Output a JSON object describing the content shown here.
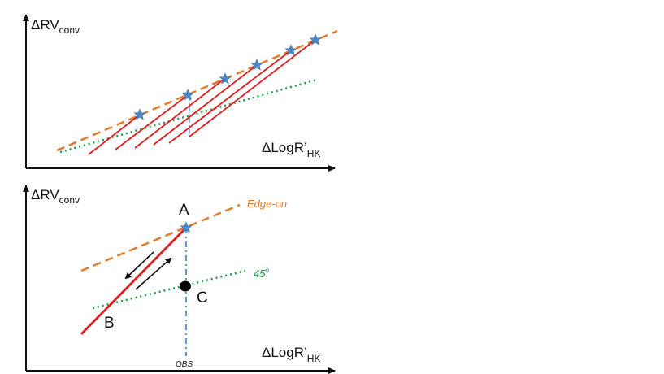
{
  "colors": {
    "axis": "#111111",
    "edge_on": "#e07b2e",
    "inclination": "#1e9a4a",
    "track": "#e41a1c",
    "star": "#4a86c8",
    "obs_line": "#4a90d0",
    "arrow": "#111111",
    "point_c": "#000000"
  },
  "top_panel": {
    "y_axis_label": {
      "main": "ΔRV",
      "sub": "conv"
    },
    "x_axis_label": {
      "main": "ΔLogR’",
      "sub": "HK"
    },
    "star_count": 6,
    "track_count": 6
  },
  "bottom_panel": {
    "y_axis_label": {
      "main": "ΔRV",
      "sub": "conv"
    },
    "x_axis_label": {
      "main": "ΔLogR’",
      "sub": "HK"
    },
    "edge_on_label": "Edge-on",
    "inclination_label": "45",
    "inclination_unit": "o",
    "point_a": "A",
    "point_b": "B",
    "point_c": "C",
    "obs_label": "OBS"
  }
}
